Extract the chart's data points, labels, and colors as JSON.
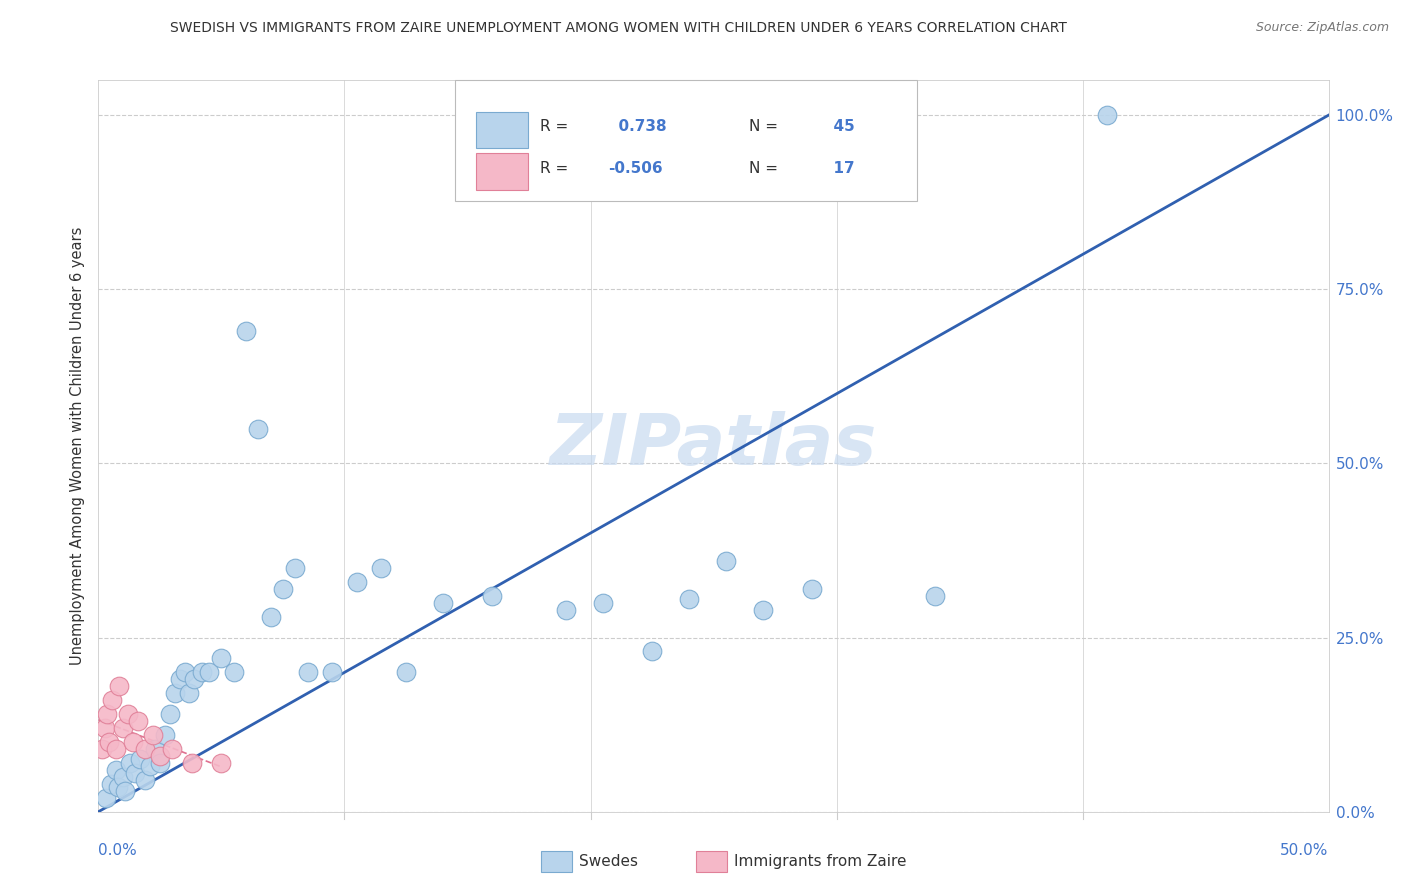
{
  "title": "SWEDISH VS IMMIGRANTS FROM ZAIRE UNEMPLOYMENT AMONG WOMEN WITH CHILDREN UNDER 6 YEARS CORRELATION CHART",
  "source": "Source: ZipAtlas.com",
  "ylabel": "Unemployment Among Women with Children Under 6 years",
  "yticks": [
    "0.0%",
    "25.0%",
    "50.0%",
    "75.0%",
    "100.0%"
  ],
  "ytick_vals": [
    0.0,
    25.0,
    50.0,
    75.0,
    100.0
  ],
  "xgrid_vals": [
    10.0,
    20.0,
    30.0,
    40.0
  ],
  "xlim": [
    0.0,
    50.0
  ],
  "ylim": [
    0.0,
    105.0
  ],
  "swedes_R": 0.738,
  "swedes_N": 45,
  "zaire_R": -0.506,
  "zaire_N": 17,
  "legend_label_swedes": "Swedes",
  "legend_label_zaire": "Immigrants from Zaire",
  "swedes_color": "#b8d4ec",
  "swedes_edge_color": "#7aaad0",
  "zaire_color": "#f5b8c8",
  "zaire_edge_color": "#e08098",
  "trend_blue": "#3060b0",
  "trend_pink": "#e07090",
  "grid_color": "#cccccc",
  "bg_color": "#ffffff",
  "text_color": "#333333",
  "source_color": "#777777",
  "axis_tick_color": "#4477cc",
  "watermark": "ZIPatlas",
  "swedes_x": [
    0.3,
    0.5,
    0.7,
    0.8,
    1.0,
    1.1,
    1.3,
    1.5,
    1.7,
    1.9,
    2.1,
    2.3,
    2.5,
    2.7,
    2.9,
    3.1,
    3.3,
    3.5,
    3.7,
    3.9,
    4.2,
    4.5,
    5.0,
    5.5,
    6.0,
    6.5,
    7.0,
    7.5,
    8.0,
    8.5,
    9.5,
    10.5,
    11.5,
    12.5,
    14.0,
    16.0,
    19.0,
    20.5,
    22.5,
    24.0,
    25.5,
    27.0,
    29.0,
    34.0,
    41.0
  ],
  "swedes_y": [
    2.0,
    4.0,
    6.0,
    3.5,
    5.0,
    3.0,
    7.0,
    5.5,
    7.5,
    4.5,
    6.5,
    9.0,
    7.0,
    11.0,
    14.0,
    17.0,
    19.0,
    20.0,
    17.0,
    19.0,
    20.0,
    20.0,
    22.0,
    20.0,
    69.0,
    55.0,
    28.0,
    32.0,
    35.0,
    20.0,
    20.0,
    33.0,
    35.0,
    20.0,
    30.0,
    31.0,
    29.0,
    30.0,
    23.0,
    30.5,
    36.0,
    29.0,
    32.0,
    31.0,
    100.0
  ],
  "zaire_x": [
    0.15,
    0.25,
    0.35,
    0.45,
    0.55,
    0.7,
    0.85,
    1.0,
    1.2,
    1.4,
    1.6,
    1.9,
    2.2,
    2.5,
    3.0,
    3.8,
    5.0
  ],
  "zaire_y": [
    9.0,
    12.0,
    14.0,
    10.0,
    16.0,
    9.0,
    18.0,
    12.0,
    14.0,
    10.0,
    13.0,
    9.0,
    11.0,
    8.0,
    9.0,
    7.0,
    7.0
  ]
}
